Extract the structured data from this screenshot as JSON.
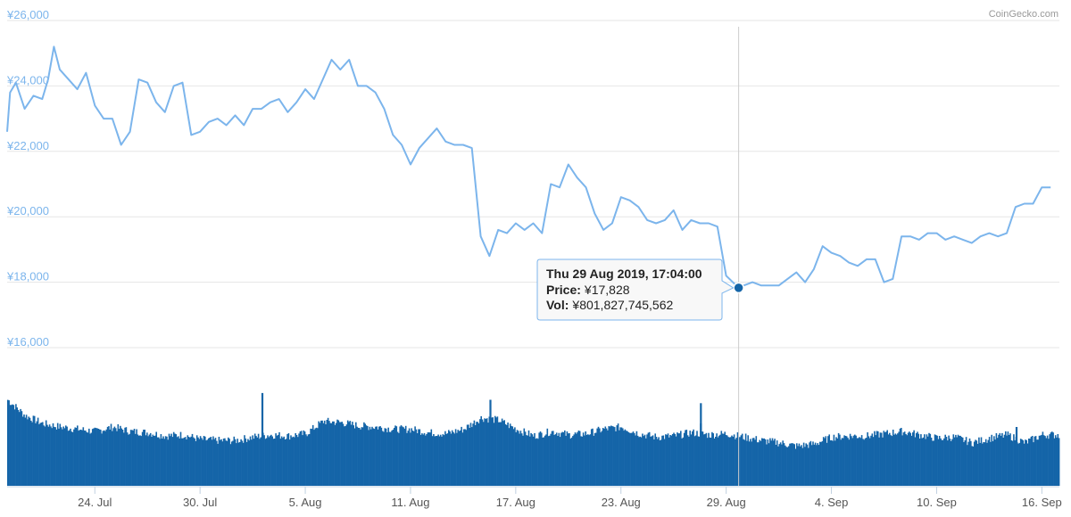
{
  "credit": "CoinGecko.com",
  "colors": {
    "price_line": "#7cb5ec",
    "volume": "#1565a8",
    "grid": "#e6e6e6",
    "crosshair": "#cccccc",
    "marker": "#1565a8"
  },
  "tooltip": {
    "title": "Thu 29 Aug 2019, 17:04:00",
    "price_label": "Price:",
    "price_value": "¥17,828",
    "vol_label": "Vol:",
    "vol_value": "¥801,827,745,562"
  },
  "chart_data": {
    "type": "line",
    "x_unit": "days",
    "xlim": [
      "2019-07-19",
      "2019-09-17"
    ],
    "ylim": [
      16000,
      26000
    ],
    "yticks": [
      {
        "value": 16000,
        "label": "¥16,000"
      },
      {
        "value": 18000,
        "label": "¥18,000"
      },
      {
        "value": 20000,
        "label": "¥20,000"
      },
      {
        "value": 22000,
        "label": "¥22,000"
      },
      {
        "value": 24000,
        "label": "¥24,000"
      },
      {
        "value": 26000,
        "label": "¥26,000"
      }
    ],
    "xticks": [
      {
        "date": "2019-07-24",
        "label": "24. Jul"
      },
      {
        "date": "2019-07-30",
        "label": "30. Jul"
      },
      {
        "date": "2019-08-05",
        "label": "5. Aug"
      },
      {
        "date": "2019-08-11",
        "label": "11. Aug"
      },
      {
        "date": "2019-08-17",
        "label": "17. Aug"
      },
      {
        "date": "2019-08-23",
        "label": "23. Aug"
      },
      {
        "date": "2019-08-29",
        "label": "29. Aug"
      },
      {
        "date": "2019-09-04",
        "label": "4. Sep"
      },
      {
        "date": "2019-09-10",
        "label": "10. Sep"
      },
      {
        "date": "2019-09-16",
        "label": "16. Sep"
      }
    ],
    "highlight": {
      "date": "2019-08-29T17:04",
      "value": 17828
    },
    "series": [
      {
        "kind": "price",
        "points": [
          [
            "2019-07-19T00:00",
            22600
          ],
          [
            "2019-07-19T04:00",
            23800
          ],
          [
            "2019-07-19T12:00",
            24100
          ],
          [
            "2019-07-20T00:00",
            23300
          ],
          [
            "2019-07-20T12:00",
            23700
          ],
          [
            "2019-07-21T00:00",
            23600
          ],
          [
            "2019-07-21T08:00",
            24200
          ],
          [
            "2019-07-21T16:00",
            25200
          ],
          [
            "2019-07-22T00:00",
            24500
          ],
          [
            "2019-07-22T12:00",
            24200
          ],
          [
            "2019-07-23T00:00",
            23900
          ],
          [
            "2019-07-23T12:00",
            24400
          ],
          [
            "2019-07-24T00:00",
            23400
          ],
          [
            "2019-07-24T12:00",
            23000
          ],
          [
            "2019-07-25T00:00",
            23000
          ],
          [
            "2019-07-25T12:00",
            22200
          ],
          [
            "2019-07-26T00:00",
            22600
          ],
          [
            "2019-07-26T12:00",
            24200
          ],
          [
            "2019-07-27T00:00",
            24100
          ],
          [
            "2019-07-27T12:00",
            23500
          ],
          [
            "2019-07-28T00:00",
            23200
          ],
          [
            "2019-07-28T12:00",
            24000
          ],
          [
            "2019-07-29T00:00",
            24100
          ],
          [
            "2019-07-29T12:00",
            22500
          ],
          [
            "2019-07-30T00:00",
            22600
          ],
          [
            "2019-07-30T12:00",
            22900
          ],
          [
            "2019-07-31T00:00",
            23000
          ],
          [
            "2019-07-31T12:00",
            22800
          ],
          [
            "2019-08-01T00:00",
            23100
          ],
          [
            "2019-08-01T12:00",
            22800
          ],
          [
            "2019-08-02T00:00",
            23300
          ],
          [
            "2019-08-02T12:00",
            23300
          ],
          [
            "2019-08-03T00:00",
            23500
          ],
          [
            "2019-08-03T12:00",
            23600
          ],
          [
            "2019-08-04T00:00",
            23200
          ],
          [
            "2019-08-04T12:00",
            23500
          ],
          [
            "2019-08-05T00:00",
            23900
          ],
          [
            "2019-08-05T12:00",
            23600
          ],
          [
            "2019-08-06T00:00",
            24200
          ],
          [
            "2019-08-06T12:00",
            24800
          ],
          [
            "2019-08-07T00:00",
            24500
          ],
          [
            "2019-08-07T12:00",
            24800
          ],
          [
            "2019-08-08T00:00",
            24000
          ],
          [
            "2019-08-08T12:00",
            24000
          ],
          [
            "2019-08-09T00:00",
            23800
          ],
          [
            "2019-08-09T12:00",
            23300
          ],
          [
            "2019-08-10T00:00",
            22500
          ],
          [
            "2019-08-10T12:00",
            22200
          ],
          [
            "2019-08-11T00:00",
            21600
          ],
          [
            "2019-08-11T12:00",
            22100
          ],
          [
            "2019-08-12T00:00",
            22400
          ],
          [
            "2019-08-12T12:00",
            22700
          ],
          [
            "2019-08-13T00:00",
            22300
          ],
          [
            "2019-08-13T12:00",
            22200
          ],
          [
            "2019-08-14T00:00",
            22200
          ],
          [
            "2019-08-14T12:00",
            22100
          ],
          [
            "2019-08-15T00:00",
            19400
          ],
          [
            "2019-08-15T12:00",
            18800
          ],
          [
            "2019-08-16T00:00",
            19600
          ],
          [
            "2019-08-16T12:00",
            19500
          ],
          [
            "2019-08-17T00:00",
            19800
          ],
          [
            "2019-08-17T12:00",
            19600
          ],
          [
            "2019-08-18T00:00",
            19800
          ],
          [
            "2019-08-18T12:00",
            19500
          ],
          [
            "2019-08-19T00:00",
            21000
          ],
          [
            "2019-08-19T12:00",
            20900
          ],
          [
            "2019-08-20T00:00",
            21600
          ],
          [
            "2019-08-20T12:00",
            21200
          ],
          [
            "2019-08-21T00:00",
            20900
          ],
          [
            "2019-08-21T12:00",
            20100
          ],
          [
            "2019-08-22T00:00",
            19600
          ],
          [
            "2019-08-22T12:00",
            19800
          ],
          [
            "2019-08-23T00:00",
            20600
          ],
          [
            "2019-08-23T12:00",
            20500
          ],
          [
            "2019-08-24T00:00",
            20300
          ],
          [
            "2019-08-24T12:00",
            19900
          ],
          [
            "2019-08-25T00:00",
            19800
          ],
          [
            "2019-08-25T12:00",
            19900
          ],
          [
            "2019-08-26T00:00",
            20200
          ],
          [
            "2019-08-26T12:00",
            19600
          ],
          [
            "2019-08-27T00:00",
            19900
          ],
          [
            "2019-08-27T12:00",
            19800
          ],
          [
            "2019-08-28T00:00",
            19800
          ],
          [
            "2019-08-28T12:00",
            19700
          ],
          [
            "2019-08-29T00:00",
            18200
          ],
          [
            "2019-08-29T17:04",
            17828
          ],
          [
            "2019-08-30T00:00",
            17900
          ],
          [
            "2019-08-30T12:00",
            18000
          ],
          [
            "2019-08-31T00:00",
            17900
          ],
          [
            "2019-08-31T12:00",
            17900
          ],
          [
            "2019-09-01T00:00",
            17900
          ],
          [
            "2019-09-01T12:00",
            18100
          ],
          [
            "2019-09-02T00:00",
            18300
          ],
          [
            "2019-09-02T12:00",
            18000
          ],
          [
            "2019-09-03T00:00",
            18400
          ],
          [
            "2019-09-03T12:00",
            19100
          ],
          [
            "2019-09-04T00:00",
            18900
          ],
          [
            "2019-09-04T12:00",
            18800
          ],
          [
            "2019-09-05T00:00",
            18600
          ],
          [
            "2019-09-05T12:00",
            18500
          ],
          [
            "2019-09-06T00:00",
            18700
          ],
          [
            "2019-09-06T12:00",
            18700
          ],
          [
            "2019-09-07T00:00",
            18000
          ],
          [
            "2019-09-07T12:00",
            18100
          ],
          [
            "2019-09-08T00:00",
            19400
          ],
          [
            "2019-09-08T12:00",
            19400
          ],
          [
            "2019-09-09T00:00",
            19300
          ],
          [
            "2019-09-09T12:00",
            19500
          ],
          [
            "2019-09-10T00:00",
            19500
          ],
          [
            "2019-09-10T12:00",
            19300
          ],
          [
            "2019-09-11T00:00",
            19400
          ],
          [
            "2019-09-11T12:00",
            19300
          ],
          [
            "2019-09-12T00:00",
            19200
          ],
          [
            "2019-09-12T12:00",
            19400
          ],
          [
            "2019-09-13T00:00",
            19500
          ],
          [
            "2019-09-13T12:00",
            19400
          ],
          [
            "2019-09-14T00:00",
            19500
          ],
          [
            "2019-09-14T12:00",
            20300
          ],
          [
            "2019-09-15T00:00",
            20400
          ],
          [
            "2019-09-15T12:00",
            20400
          ],
          [
            "2019-09-16T00:00",
            20900
          ],
          [
            "2019-09-16T12:00",
            20900
          ]
        ]
      },
      {
        "kind": "volume",
        "levels": [
          [
            "2019-07-19",
            0.76
          ],
          [
            "2019-07-20",
            0.62
          ],
          [
            "2019-07-21",
            0.55
          ],
          [
            "2019-07-22",
            0.52
          ],
          [
            "2019-07-23",
            0.5
          ],
          [
            "2019-07-24",
            0.48
          ],
          [
            "2019-07-25",
            0.52
          ],
          [
            "2019-07-26",
            0.48
          ],
          [
            "2019-07-27",
            0.47
          ],
          [
            "2019-07-28",
            0.44
          ],
          [
            "2019-07-29",
            0.45
          ],
          [
            "2019-07-30",
            0.41
          ],
          [
            "2019-07-31",
            0.4
          ],
          [
            "2019-08-01",
            0.4
          ],
          [
            "2019-08-02",
            0.43
          ],
          [
            "2019-08-03",
            0.45
          ],
          [
            "2019-08-04",
            0.44
          ],
          [
            "2019-08-05",
            0.46
          ],
          [
            "2019-08-06",
            0.57
          ],
          [
            "2019-08-07",
            0.56
          ],
          [
            "2019-08-08",
            0.53
          ],
          [
            "2019-08-09",
            0.52
          ],
          [
            "2019-08-10",
            0.5
          ],
          [
            "2019-08-11",
            0.5
          ],
          [
            "2019-08-12",
            0.47
          ],
          [
            "2019-08-13",
            0.46
          ],
          [
            "2019-08-14",
            0.5
          ],
          [
            "2019-08-15",
            0.6
          ],
          [
            "2019-08-16",
            0.58
          ],
          [
            "2019-08-17",
            0.5
          ],
          [
            "2019-08-18",
            0.44
          ],
          [
            "2019-08-19",
            0.48
          ],
          [
            "2019-08-20",
            0.45
          ],
          [
            "2019-08-21",
            0.46
          ],
          [
            "2019-08-22",
            0.5
          ],
          [
            "2019-08-23",
            0.52
          ],
          [
            "2019-08-24",
            0.46
          ],
          [
            "2019-08-25",
            0.43
          ],
          [
            "2019-08-26",
            0.44
          ],
          [
            "2019-08-27",
            0.47
          ],
          [
            "2019-08-28",
            0.45
          ],
          [
            "2019-08-29",
            0.46
          ],
          [
            "2019-08-30",
            0.43
          ],
          [
            "2019-08-31",
            0.4
          ],
          [
            "2019-09-01",
            0.38
          ],
          [
            "2019-09-02",
            0.35
          ],
          [
            "2019-09-03",
            0.37
          ],
          [
            "2019-09-04",
            0.43
          ],
          [
            "2019-09-05",
            0.44
          ],
          [
            "2019-09-06",
            0.44
          ],
          [
            "2019-09-07",
            0.46
          ],
          [
            "2019-09-08",
            0.48
          ],
          [
            "2019-09-09",
            0.45
          ],
          [
            "2019-09-10",
            0.42
          ],
          [
            "2019-09-11",
            0.43
          ],
          [
            "2019-09-12",
            0.38
          ],
          [
            "2019-09-13",
            0.42
          ],
          [
            "2019-09-14",
            0.45
          ],
          [
            "2019-09-15",
            0.38
          ],
          [
            "2019-09-16",
            0.45
          ],
          [
            "2019-09-17",
            0.45
          ]
        ],
        "spikes": [
          [
            "2019-08-02",
            0.82
          ],
          [
            "2019-08-15",
            0.76
          ],
          [
            "2019-08-27",
            0.73
          ],
          [
            "2019-08-27",
            0.55
          ],
          [
            "2019-09-14",
            0.52
          ]
        ]
      }
    ]
  }
}
